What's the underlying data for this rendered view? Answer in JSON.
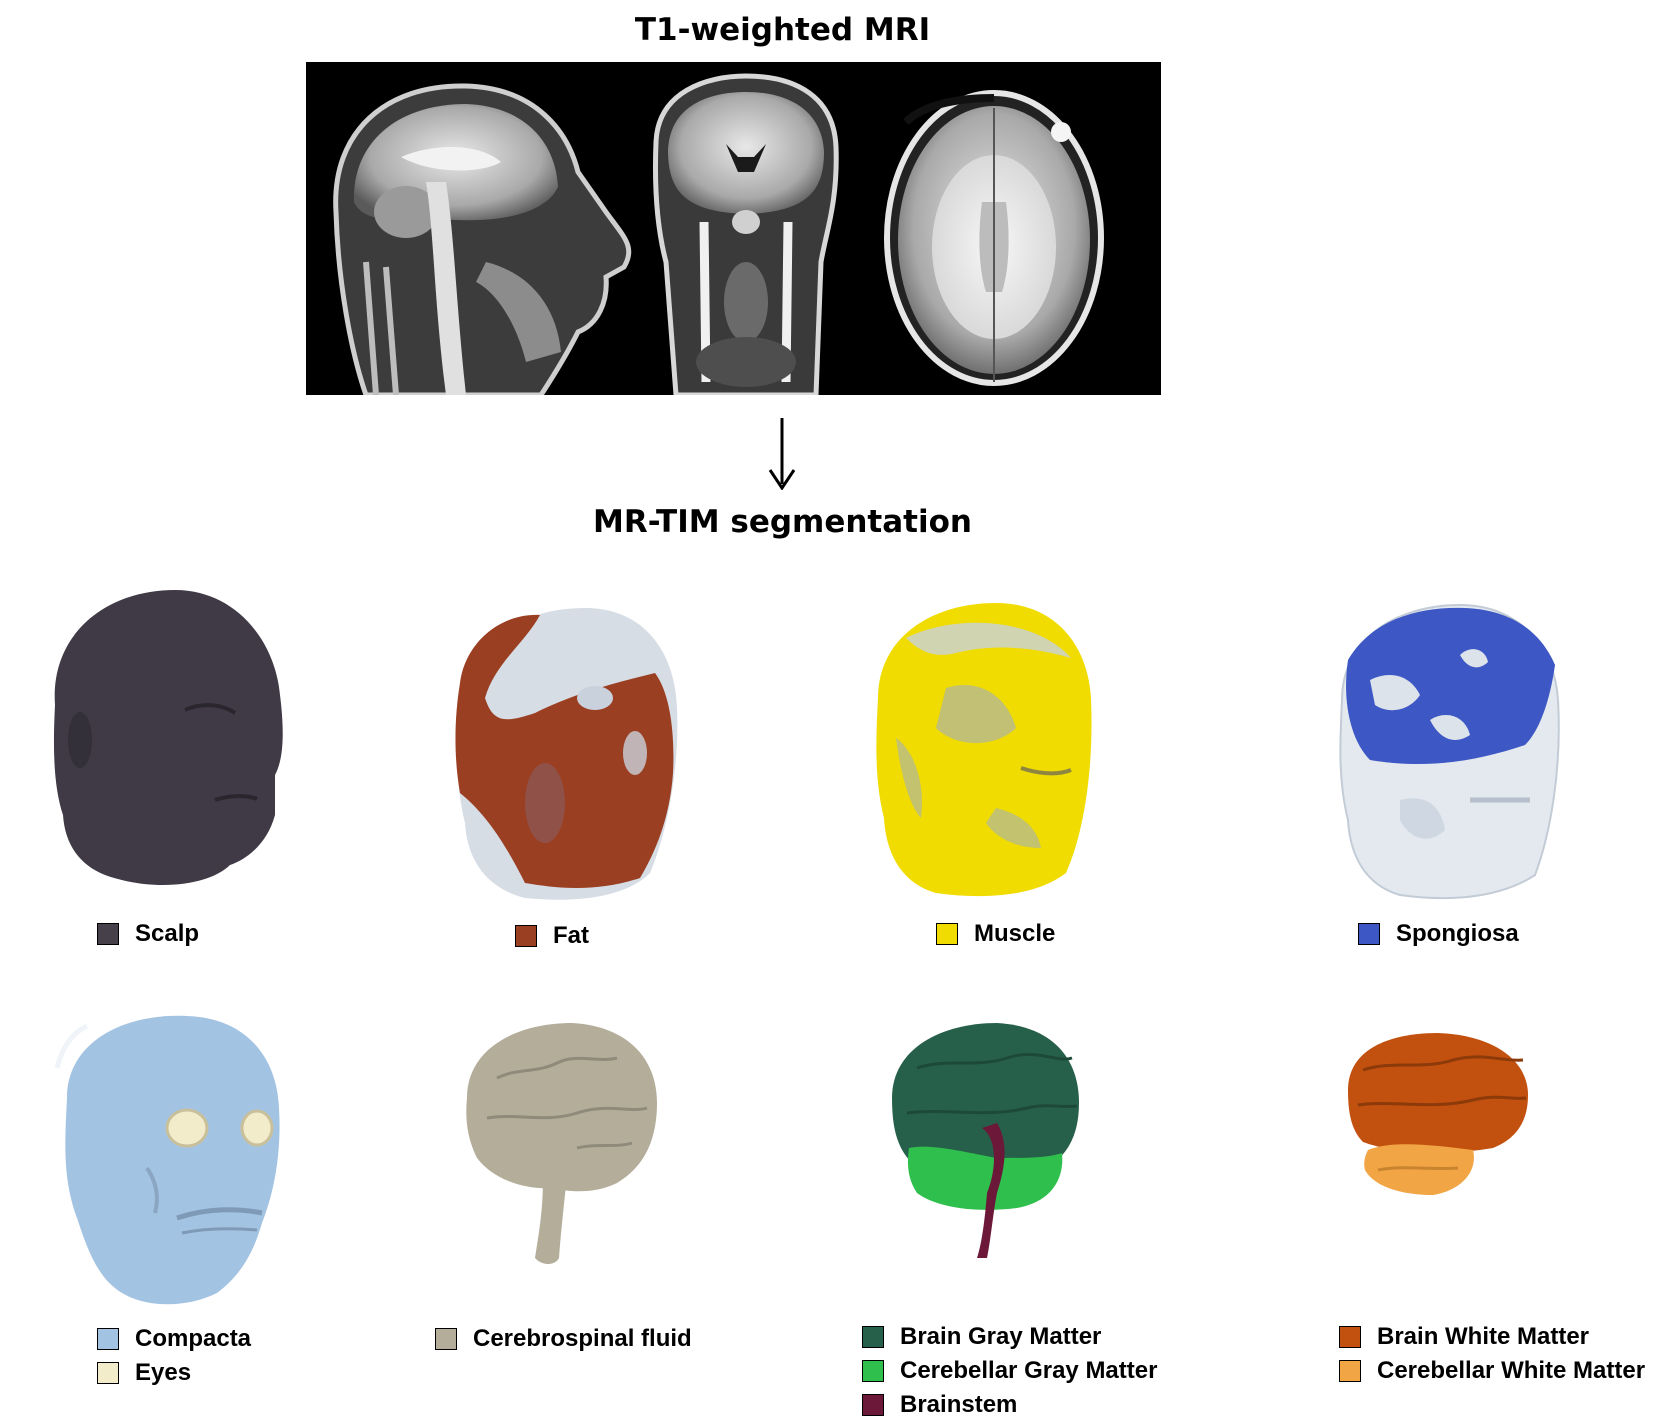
{
  "titles": {
    "mri": "T1-weighted MRI",
    "segmentation": "MR-TIM segmentation"
  },
  "mri_views": [
    "sagittal",
    "coronal",
    "axial"
  ],
  "tissues": {
    "scalp": {
      "label": "Scalp",
      "color": "#45404a"
    },
    "fat": {
      "label": "Fat",
      "color": "#9b3f22"
    },
    "muscle": {
      "label": "Muscle",
      "color": "#f0dc00"
    },
    "spongiosa": {
      "label": "Spongiosa",
      "color": "#3d57c4"
    },
    "compacta": {
      "label": "Compacta",
      "color": "#a3c3e3"
    },
    "eyes": {
      "label": "Eyes",
      "color": "#f3eccb"
    },
    "csf": {
      "label": "Cerebrospinal fluid",
      "color": "#b3ad9a"
    },
    "brain_gm": {
      "label": "Brain Gray Matter",
      "color": "#27604a"
    },
    "cereb_gm": {
      "label": "Cerebellar Gray Matter",
      "color": "#2fbf4d"
    },
    "brainstem": {
      "label": "Brainstem",
      "color": "#6b1839"
    },
    "brain_wm": {
      "label": "Brain White Matter",
      "color": "#c2500f"
    },
    "cereb_wm": {
      "label": "Cerebellar White Matter",
      "color": "#f2a545"
    }
  }
}
